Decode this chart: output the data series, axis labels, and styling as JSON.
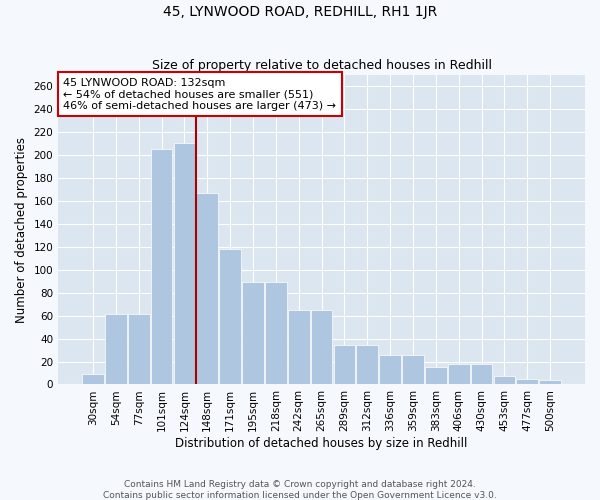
{
  "title": "45, LYNWOOD ROAD, REDHILL, RH1 1JR",
  "subtitle": "Size of property relative to detached houses in Redhill",
  "xlabel": "Distribution of detached houses by size in Redhill",
  "ylabel": "Number of detached properties",
  "footer_line1": "Contains HM Land Registry data © Crown copyright and database right 2024.",
  "footer_line2": "Contains public sector information licensed under the Open Government Licence v3.0.",
  "categories": [
    "30sqm",
    "54sqm",
    "77sqm",
    "101sqm",
    "124sqm",
    "148sqm",
    "171sqm",
    "195sqm",
    "218sqm",
    "242sqm",
    "265sqm",
    "289sqm",
    "312sqm",
    "336sqm",
    "359sqm",
    "383sqm",
    "406sqm",
    "430sqm",
    "453sqm",
    "477sqm",
    "500sqm"
  ],
  "values": [
    9,
    61,
    61,
    205,
    210,
    167,
    118,
    89,
    89,
    65,
    65,
    34,
    34,
    26,
    26,
    15,
    18,
    18,
    7,
    5,
    4
  ],
  "bar_color": "#aec6df",
  "background_color": "#dce6f0",
  "grid_color": "#ffffff",
  "fig_background": "#f5f8fc",
  "ylim": [
    0,
    270
  ],
  "yticks": [
    0,
    20,
    40,
    60,
    80,
    100,
    120,
    140,
    160,
    180,
    200,
    220,
    240,
    260
  ],
  "property_label": "45 LYNWOOD ROAD: 132sqm",
  "annotation_line1": "← 54% of detached houses are smaller (551)",
  "annotation_line2": "46% of semi-detached houses are larger (473) →",
  "vline_color": "#aa0000",
  "annotation_box_color": "#ffffff",
  "annotation_box_edge": "#cc0000",
  "title_fontsize": 10,
  "subtitle_fontsize": 9,
  "axis_label_fontsize": 8.5,
  "tick_fontsize": 7.5,
  "annotation_fontsize": 8,
  "footer_fontsize": 6.5
}
